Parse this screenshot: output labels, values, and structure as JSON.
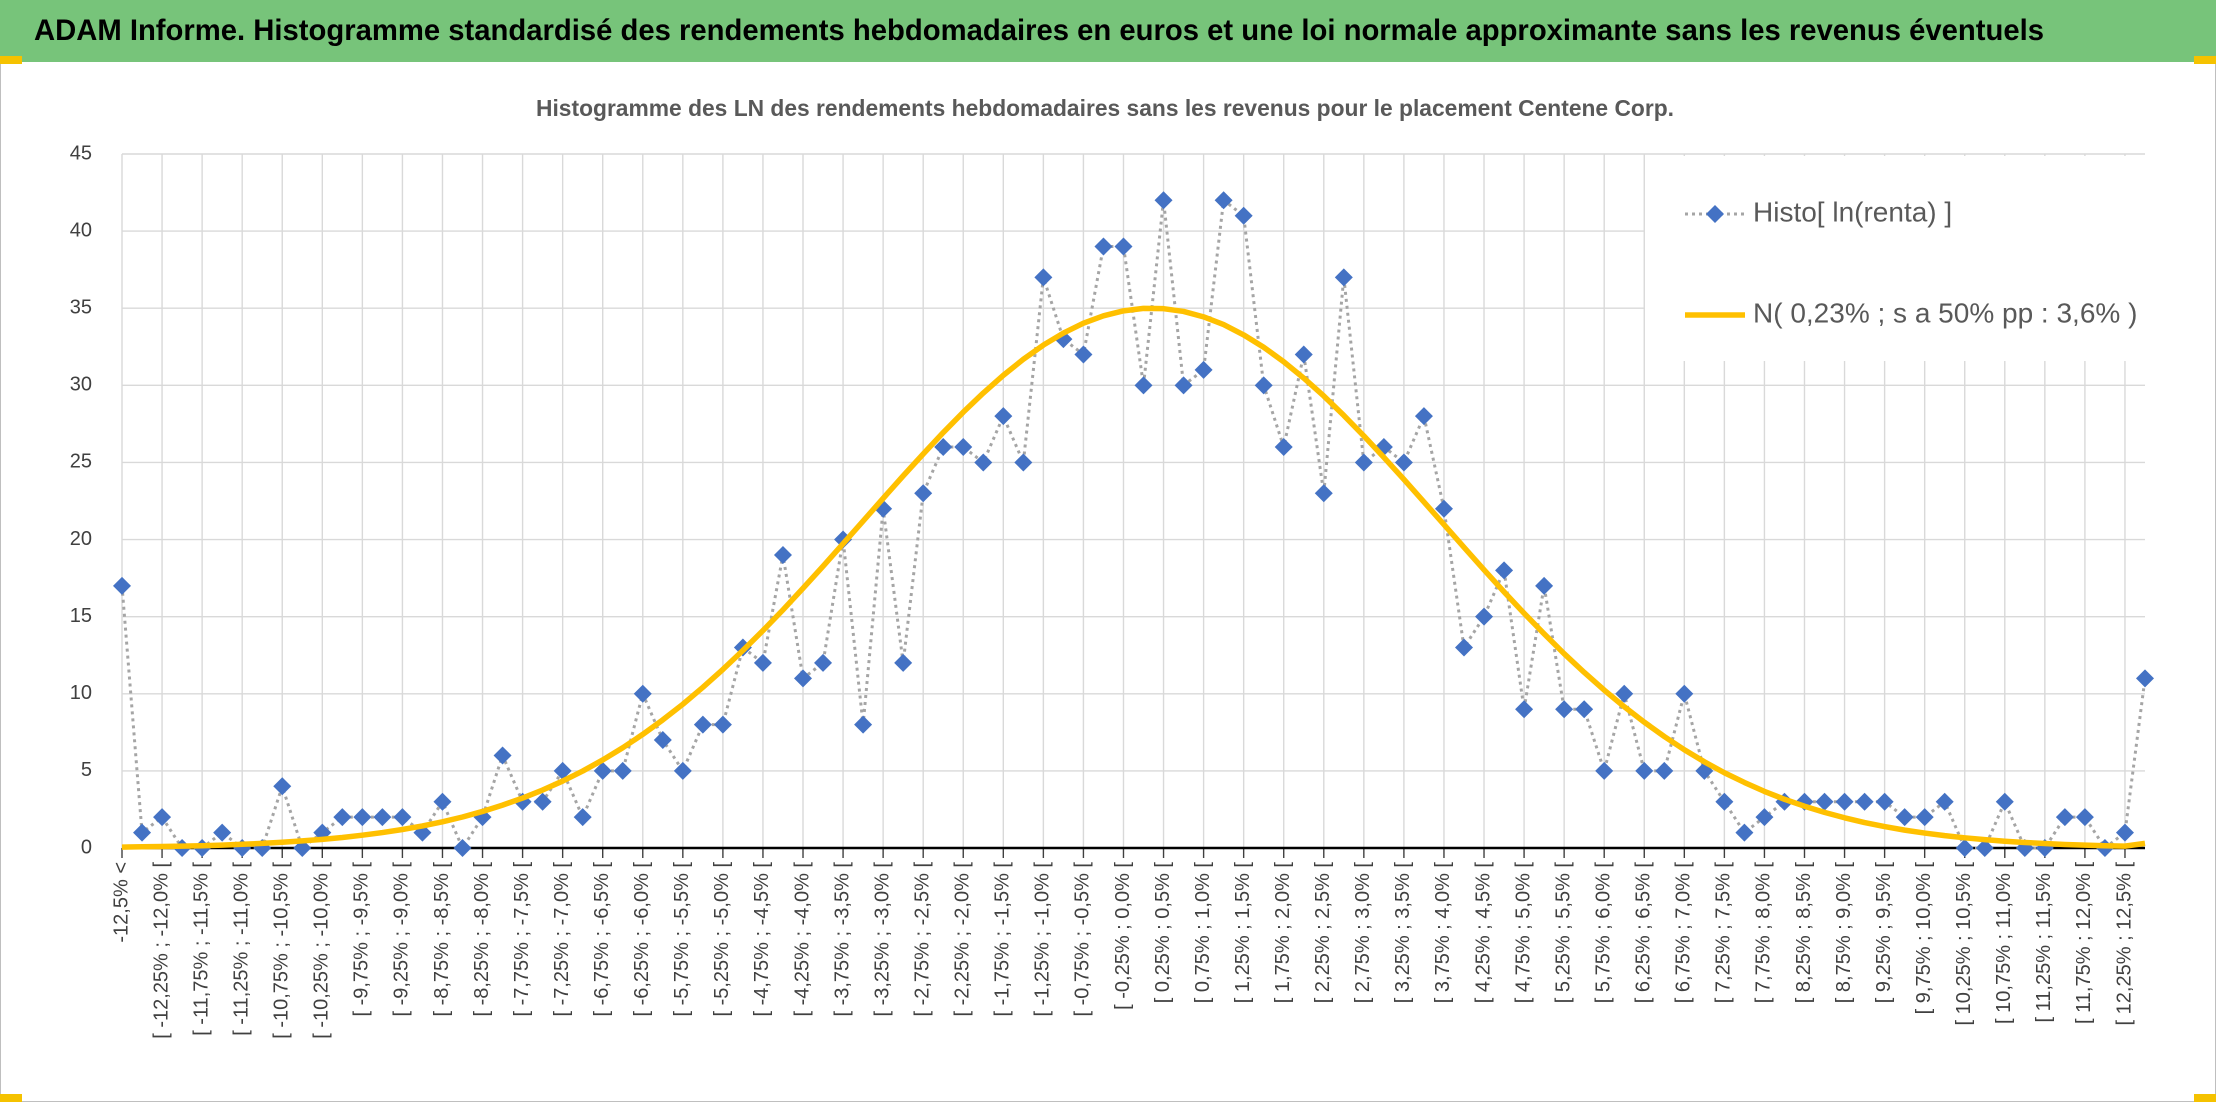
{
  "chart_data": {
    "type": "line",
    "header": "ADAM Informe. Histogramme standardisé des rendements hebdomadaires en euros et une loi normale approximante sans les revenus éventuels",
    "title": "Histogramme des LN des rendements hebdomadaires sans les revenus pour le placement Centene Corp.",
    "categories": [
      "-12,5% <",
      null,
      "[ -12,25% ; -12,0% [",
      null,
      "[ -11,75% ; -11,5% [",
      null,
      "[ -11,25% ; -11,0% [",
      null,
      "[ -10,75% ; -10,5% [",
      null,
      "[ -10,25% ; -10,0% [",
      null,
      "[ -9,75% ; -9,5% [",
      null,
      "[ -9,25% ; -9,0% [",
      null,
      "[ -8,75% ; -8,5% [",
      null,
      "[ -8,25% ; -8,0% [",
      null,
      "[ -7,75% ; -7,5% [",
      null,
      "[ -7,25% ; -7,0% [",
      null,
      "[ -6,75% ; -6,5% [",
      null,
      "[ -6,25% ; -6,0% [",
      null,
      "[ -5,75% ; -5,5% [",
      null,
      "[ -5,25% ; -5,0% [",
      null,
      "[ -4,75% ; -4,5% [",
      null,
      "[ -4,25% ; -4,0% [",
      null,
      "[ -3,75% ; -3,5% [",
      null,
      "[ -3,25% ; -3,0% [",
      null,
      "[ -2,75% ; -2,5% [",
      null,
      "[ -2,25% ; -2,0% [",
      null,
      "[ -1,75% ; -1,5% [",
      null,
      "[ -1,25% ; -1,0% [",
      null,
      "[ -0,75% ; -0,5% [",
      null,
      "[ -0,25% ; 0,0% [",
      null,
      "[ 0,25% ; 0,5% [",
      null,
      "[ 0,75% ; 1,0% [",
      null,
      "[ 1,25% ; 1,5% [",
      null,
      "[ 1,75% ; 2,0% [",
      null,
      "[ 2,25% ; 2,5% [",
      null,
      "[ 2,75% ; 3,0% [",
      null,
      "[ 3,25% ; 3,5% [",
      null,
      "[ 3,75% ; 4,0% [",
      null,
      "[ 4,25% ; 4,5% [",
      null,
      "[ 4,75% ; 5,0% [",
      null,
      "[ 5,25% ; 5,5% [",
      null,
      "[ 5,75% ; 6,0% [",
      null,
      "[ 6,25% ; 6,5% [",
      null,
      "[ 6,75% ; 7,0% [",
      null,
      "[ 7,25% ; 7,5% [",
      null,
      "[ 7,75% ; 8,0% [",
      null,
      "[ 8,25% ; 8,5% [",
      null,
      "[ 8,75% ; 9,0% [",
      null,
      "[ 9,25% ; 9,5% [",
      null,
      "[ 9,75% ; 10,0% [",
      null,
      "[ 10,25% ; 10,5% [",
      null,
      "[ 10,75% ; 11,0% [",
      null,
      "[ 11,25% ; 11,5% [",
      null,
      "[ 11,75% ; 12,0% [",
      null,
      "[ 12,25% ; 12,5% [",
      null
    ],
    "series": [
      {
        "name": "Histo[ ln(renta) ]",
        "color": "#4472c4",
        "line_color": "#a5a5a5",
        "marker": "diamond",
        "line": "dotted",
        "values": [
          17,
          1,
          2,
          0,
          0,
          1,
          0,
          0,
          4,
          0,
          1,
          2,
          2,
          2,
          2,
          1,
          3,
          0,
          2,
          6,
          3,
          3,
          5,
          2,
          5,
          5,
          10,
          7,
          5,
          8,
          8,
          13,
          12,
          19,
          11,
          12,
          20,
          8,
          22,
          12,
          23,
          26,
          26,
          25,
          28,
          25,
          37,
          33,
          32,
          39,
          39,
          30,
          42,
          30,
          31,
          42,
          41,
          30,
          26,
          32,
          23,
          37,
          25,
          26,
          25,
          28,
          22,
          13,
          15,
          18,
          9,
          17,
          9,
          9,
          5,
          10,
          5,
          5,
          10,
          5,
          3,
          1,
          2,
          3,
          3,
          3,
          3,
          3,
          3,
          2,
          2,
          3,
          0,
          0,
          3,
          0,
          0,
          2,
          2,
          0,
          1,
          11
        ]
      },
      {
        "name": "N( 0,23% ; s a 50% pp : 3,6% )",
        "color": "#ffc000",
        "marker": "none",
        "line": "solid",
        "values": [
          0.06,
          0.08,
          0.1,
          0.12,
          0.15,
          0.19,
          0.24,
          0.3,
          0.37,
          0.46,
          0.56,
          0.68,
          0.83,
          1.0,
          1.2,
          1.43,
          1.7,
          2.01,
          2.37,
          2.78,
          3.24,
          3.76,
          4.34,
          4.99,
          5.71,
          6.5,
          7.37,
          8.31,
          9.32,
          10.42,
          11.58,
          12.81,
          14.1,
          15.44,
          16.84,
          18.27,
          19.73,
          21.2,
          22.67,
          24.13,
          25.55,
          26.94,
          28.26,
          29.5,
          30.65,
          31.69,
          32.61,
          33.39,
          34.03,
          34.51,
          34.83,
          34.99,
          34.97,
          34.79,
          34.44,
          33.94,
          33.27,
          32.47,
          31.53,
          30.47,
          29.31,
          28.05,
          26.72,
          25.33,
          23.9,
          22.44,
          20.97,
          19.5,
          18.04,
          16.61,
          15.22,
          13.89,
          12.6,
          11.39,
          10.24,
          9.16,
          8.16,
          7.23,
          6.37,
          5.59,
          4.88,
          4.25,
          3.67,
          3.16,
          2.71,
          2.31,
          1.96,
          1.65,
          1.39,
          1.16,
          0.97,
          0.8,
          0.66,
          0.54,
          0.44,
          0.36,
          0.29,
          0.23,
          0.19,
          0.15,
          0.12,
          0.3
        ]
      }
    ],
    "ylim": [
      0,
      45
    ],
    "yticks": [
      0,
      5,
      10,
      15,
      20,
      25,
      30,
      35,
      40,
      45
    ],
    "grid": true,
    "legend": "upper right"
  }
}
